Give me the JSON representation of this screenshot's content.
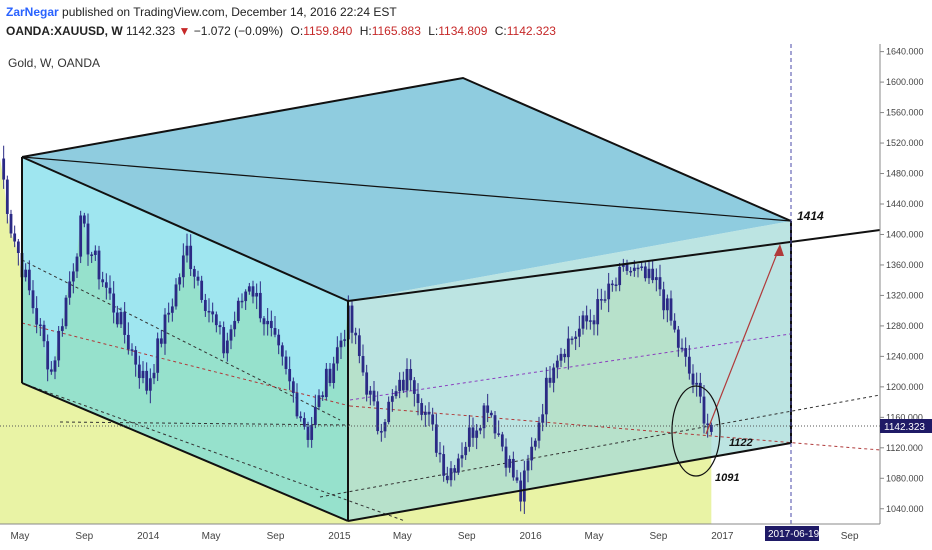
{
  "header": {
    "author": "ZarNegar",
    "published": "published on TradingView.com, December 14, 2016 22:24 EST",
    "symbol": "OANDA:XAUUSD, W",
    "last": "1142.323",
    "change_arrow": "▼",
    "change": "−1.072 (−0.09%)",
    "o_label": "O:",
    "o_value": "1159.840",
    "h_label": "H:",
    "h_value": "1165.883",
    "l_label": "L:",
    "l_value": "1134.809",
    "c_label": "C:",
    "c_value": "1142.323"
  },
  "chart_title": "Gold, W, OANDA",
  "annotations": {
    "upper_target": "1414",
    "lower_mid": "1122",
    "lower_low": "1091"
  },
  "price_tag": "1142.323",
  "date_tag": "2017-06-19",
  "colors": {
    "candle": "#2b2a85",
    "top_face": "#7bc3d9",
    "front_face": "#5fd6e6",
    "right_face": "#a6dbd8",
    "area": "#e4f08e",
    "price_tag_bg": "#1f1a66",
    "arrow": "#b03a3a"
  },
  "chart_data": {
    "type": "candlestick",
    "ylim": [
      1020,
      1650
    ],
    "y_ticks": [
      1040,
      1080,
      1120,
      1160,
      1200,
      1240,
      1280,
      1320,
      1360,
      1400,
      1440,
      1480,
      1520,
      1560,
      1600,
      1640
    ],
    "y_tick_labels": [
      "1040.000",
      "1080.000",
      "1120.000",
      "1160.000",
      "1200.000",
      "1240.000",
      "1280.000",
      "1320.000",
      "1360.000",
      "1400.000",
      "1440.000",
      "1480.000",
      "1520.000",
      "1560.000",
      "1600.000",
      "1640.000"
    ],
    "x_tick_labels": [
      "May",
      "Sep",
      "2014",
      "May",
      "Sep",
      "2015",
      "May",
      "Sep",
      "2016",
      "May",
      "Sep",
      "2017",
      "M",
      "Sep"
    ],
    "x_tick_dates": [
      "2013-05-01",
      "2013-09-01",
      "2014-01-01",
      "2014-05-01",
      "2014-09-01",
      "2015-01-01",
      "2015-05-01",
      "2015-09-01",
      "2016-01-01",
      "2016-05-01",
      "2016-09-01",
      "2017-01-01",
      "2017-05-01",
      "2017-09-01"
    ],
    "x_range": [
      "2013-03-24",
      "2017-10-29"
    ],
    "series_closes": [
      {
        "date": "2013-03-24",
        "close": 1500
      },
      {
        "date": "2013-04-14",
        "close": 1410
      },
      {
        "date": "2013-06-30",
        "close": 1220
      },
      {
        "date": "2013-08-25",
        "close": 1410
      },
      {
        "date": "2013-12-29",
        "close": 1200
      },
      {
        "date": "2014-03-16",
        "close": 1380
      },
      {
        "date": "2014-05-25",
        "close": 1250
      },
      {
        "date": "2014-07-13",
        "close": 1340
      },
      {
        "date": "2014-11-02",
        "close": 1140
      },
      {
        "date": "2015-01-18",
        "close": 1290
      },
      {
        "date": "2015-03-15",
        "close": 1150
      },
      {
        "date": "2015-05-17",
        "close": 1220
      },
      {
        "date": "2015-07-26",
        "close": 1085
      },
      {
        "date": "2015-10-11",
        "close": 1180
      },
      {
        "date": "2015-12-13",
        "close": 1055
      },
      {
        "date": "2016-02-14",
        "close": 1240
      },
      {
        "date": "2016-05-01",
        "close": 1295
      },
      {
        "date": "2016-07-03",
        "close": 1355
      },
      {
        "date": "2016-09-04",
        "close": 1330
      },
      {
        "date": "2016-10-09",
        "close": 1255
      },
      {
        "date": "2016-12-11",
        "close": 1142
      }
    ],
    "last_close": 1142.323,
    "ohlc_last": {
      "open": 1159.84,
      "high": 1165.883,
      "low": 1134.809,
      "close": 1142.323
    },
    "grid": false,
    "legend": "none"
  }
}
